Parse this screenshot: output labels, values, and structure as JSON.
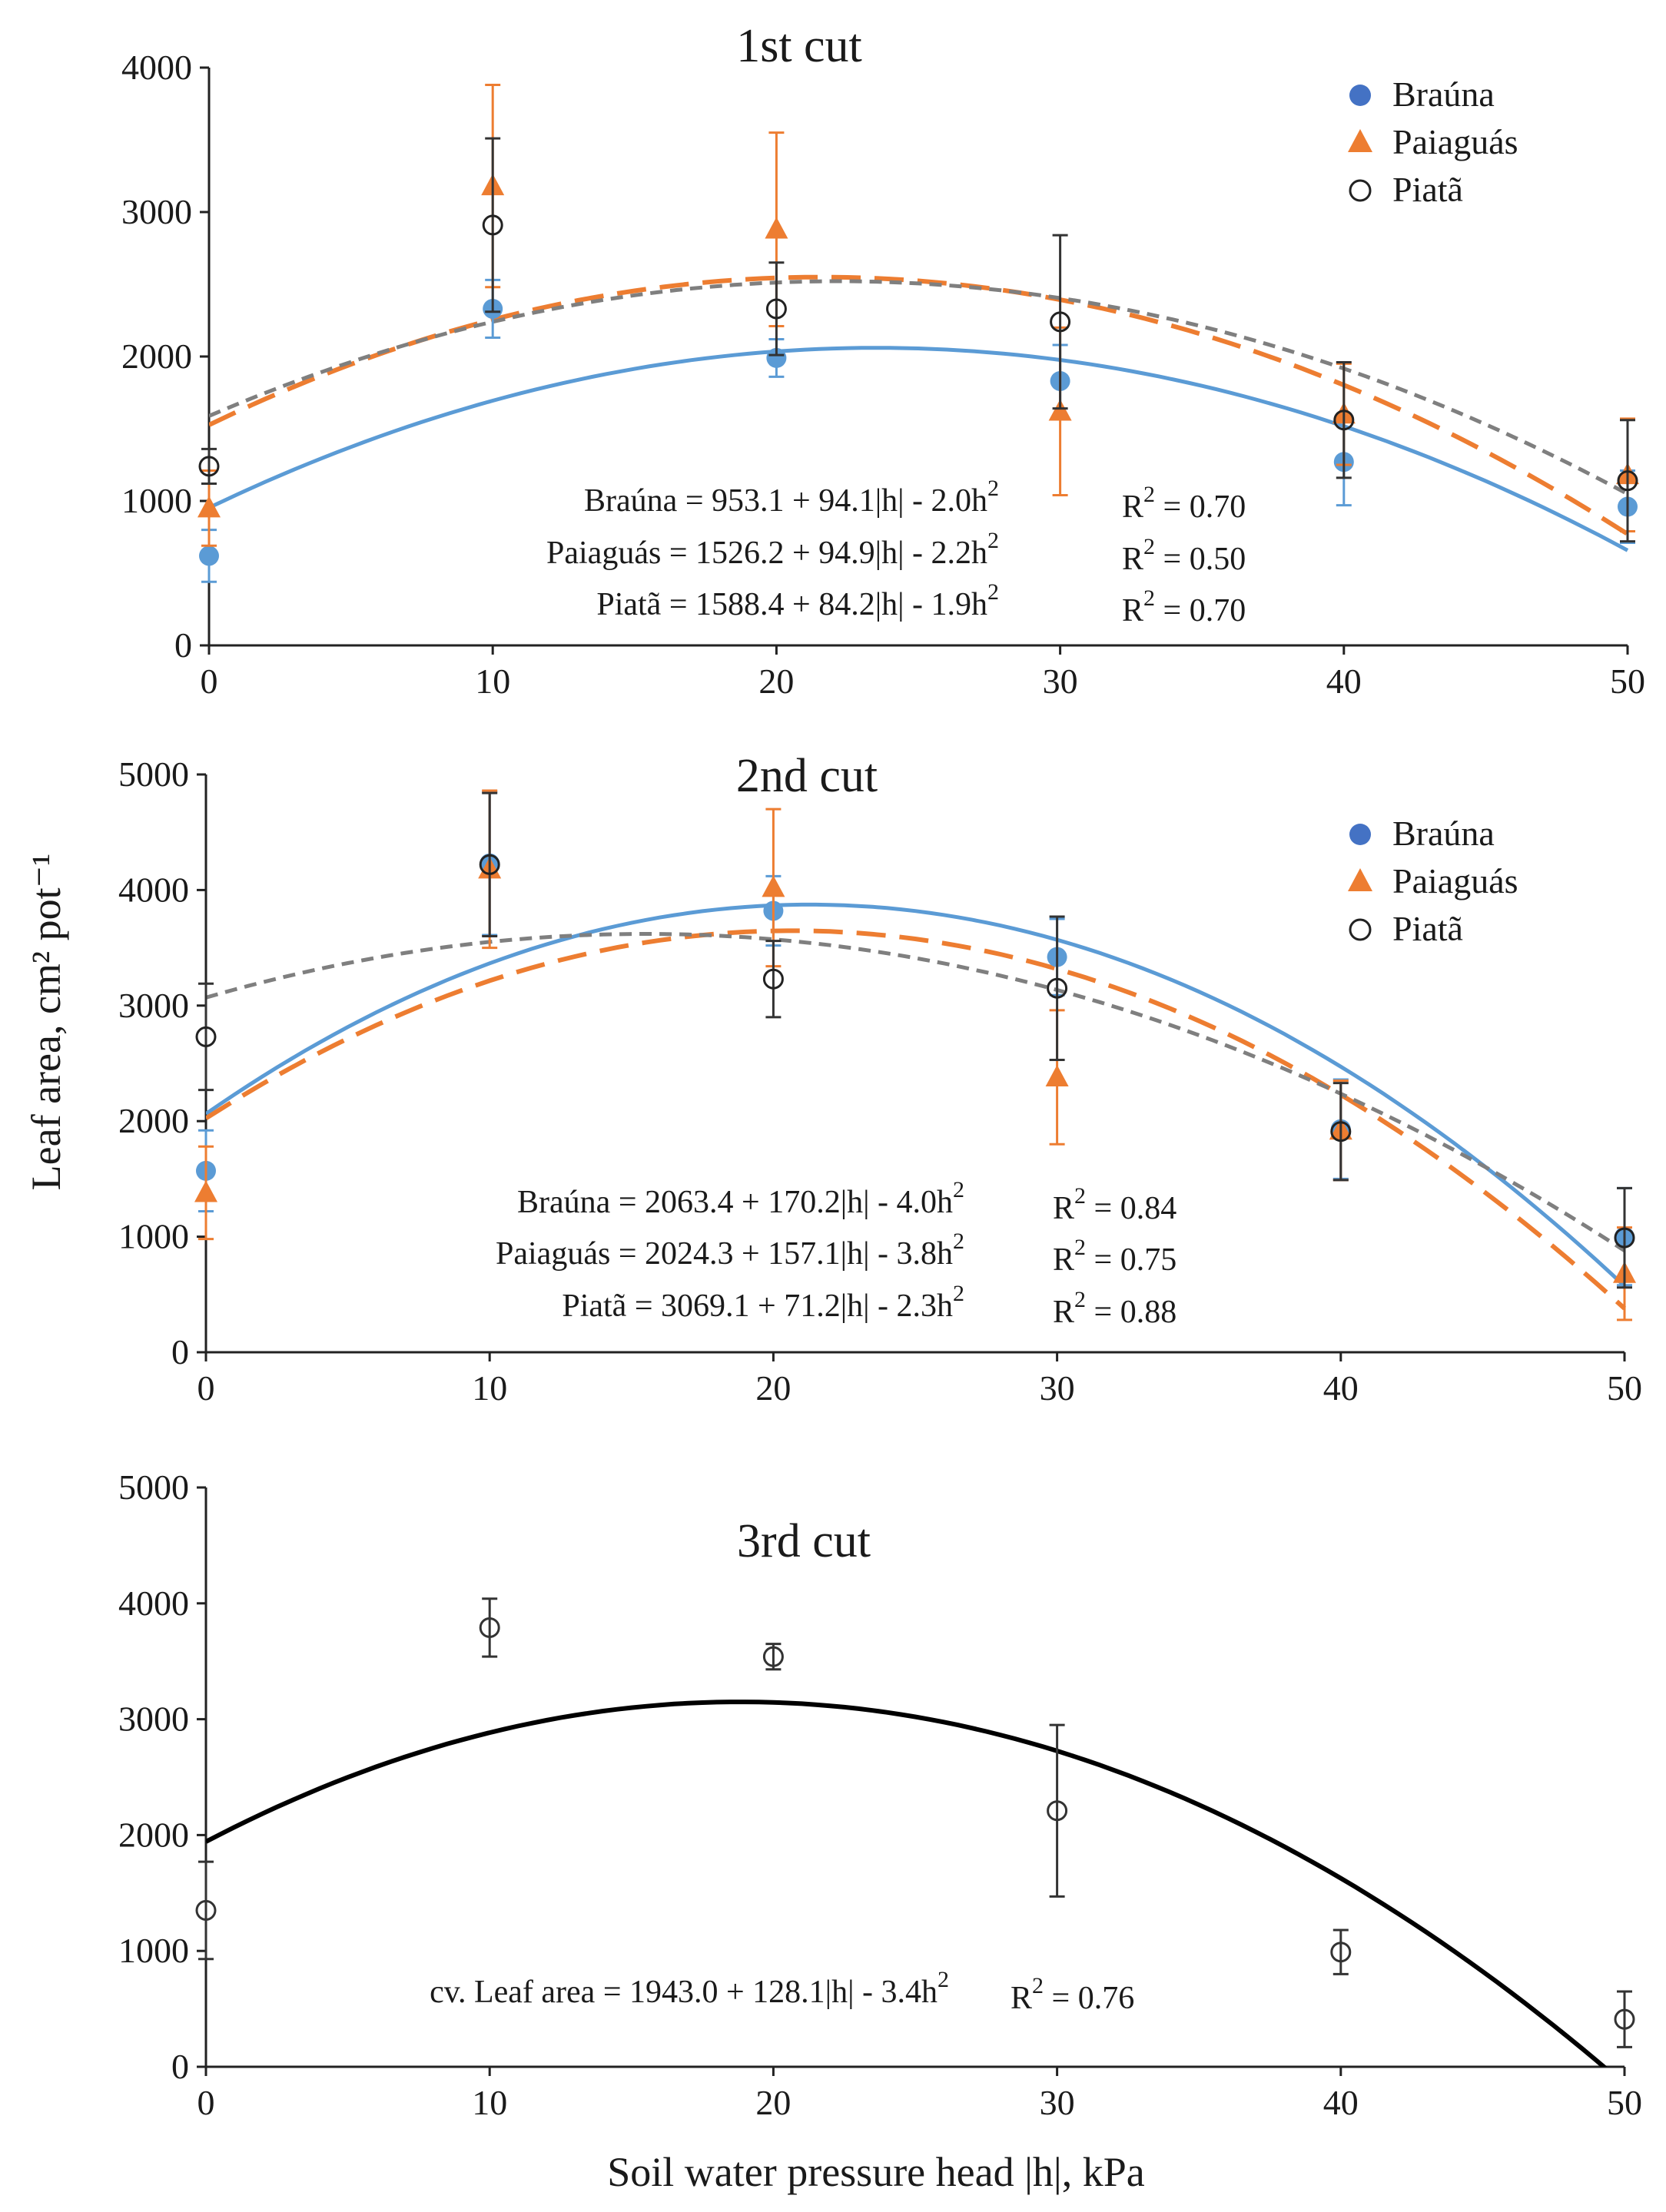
{
  "figure": {
    "ylabel": "Leaf area, cm² pot⁻¹",
    "xlabel": "Soil water pressure head |h|, kPa"
  },
  "colors": {
    "brauna": "#5b9bd5",
    "brauna_marker": "#4472c4",
    "paiaguas": "#ed7d31",
    "piata": "#7f7f7f",
    "black": "#000000"
  },
  "chart_data": [
    {
      "type": "scatter",
      "title": "1st cut",
      "x": [
        0,
        10,
        20,
        30,
        40,
        50
      ],
      "xticks": [
        0,
        10,
        20,
        30,
        40,
        50
      ],
      "xlim": [
        0,
        50
      ],
      "ylim": [
        0,
        4000
      ],
      "yticks": [
        0,
        1000,
        2000,
        3000,
        4000
      ],
      "legend": [
        "Braúna",
        "Paiaguás",
        "Piatã"
      ],
      "legend_position": "top-right",
      "series": [
        {
          "name": "Braúna",
          "values": [
            620,
            2330,
            1990,
            1830,
            1270,
            960
          ],
          "errors": [
            180,
            200,
            130,
            250,
            300,
            250
          ],
          "fit": {
            "a": 953.1,
            "b": 94.1,
            "c": -2.0
          },
          "equation": "Braúna = 953.1 + 94.1|h| - 2.0h",
          "r2": "R",
          "r2_value": " = 0.70"
        },
        {
          "name": "Paiaguás",
          "values": [
            950,
            3180,
            2880,
            1620,
            1600,
            1180
          ],
          "errors": [
            260,
            700,
            670,
            580,
            350,
            390
          ],
          "fit": {
            "a": 1526.2,
            "b": 94.9,
            "c": -2.2
          },
          "equation": "Paiaguás = 1526.2 + 94.9|h| - 2.2h",
          "r2": "R",
          "r2_value": " = 0.50"
        },
        {
          "name": "Piatã",
          "values": [
            1240,
            2910,
            2330,
            2240,
            1560,
            1140
          ],
          "errors": [
            120,
            600,
            320,
            600,
            400,
            420
          ],
          "fit": {
            "a": 1588.4,
            "b": 84.2,
            "c": -1.9
          },
          "equation": "Piatã = 1588.4 + 84.2|h| - 1.9h",
          "r2": "R",
          "r2_value": " = 0.70"
        }
      ]
    },
    {
      "type": "scatter",
      "title": "2nd cut",
      "x": [
        0,
        10,
        20,
        30,
        40,
        50
      ],
      "xticks": [
        0,
        10,
        20,
        30,
        40,
        50
      ],
      "xlim": [
        0,
        50
      ],
      "ylim": [
        0,
        5000
      ],
      "yticks": [
        0,
        1000,
        2000,
        3000,
        4000,
        5000
      ],
      "legend": [
        "Braúna",
        "Paiaguás",
        "Piatã"
      ],
      "legend_position": "top-right",
      "series": [
        {
          "name": "Braúna",
          "values": [
            1570,
            4230,
            3820,
            3420,
            1930,
            1000
          ],
          "errors": [
            350,
            620,
            300,
            330,
            430,
            420
          ],
          "fit": {
            "a": 2063.4,
            "b": 170.2,
            "c": -4.0
          },
          "equation": "Braúna = 2063.4 + 170.2|h| - 4.0h",
          "r2": "R",
          "r2_value": " = 0.84"
        },
        {
          "name": "Paiaguás",
          "values": [
            1380,
            4180,
            4020,
            2380,
            1920,
            680
          ],
          "errors": [
            400,
            680,
            680,
            580,
            430,
            400
          ],
          "fit": {
            "a": 2024.3,
            "b": 157.1,
            "c": -3.8
          },
          "equation": "Paiaguás = 2024.3 + 157.1|h| - 3.8h",
          "r2": "R",
          "r2_value": " = 0.75"
        },
        {
          "name": "Piatã",
          "values": [
            2730,
            4220,
            3230,
            3150,
            1910,
            990
          ],
          "errors": [
            460,
            620,
            330,
            620,
            420,
            430
          ],
          "fit": {
            "a": 3069.1,
            "b": 71.2,
            "c": -2.3
          },
          "equation": "Piatã = 3069.1 + 71.2|h| - 2.3h",
          "r2": "R",
          "r2_value": " = 0.88"
        }
      ]
    },
    {
      "type": "scatter",
      "title": "3rd cut",
      "x": [
        0,
        10,
        20,
        30,
        40,
        50
      ],
      "xticks": [
        0,
        10,
        20,
        30,
        40,
        50
      ],
      "xlim": [
        0,
        50
      ],
      "ylim": [
        0,
        5000
      ],
      "yticks": [
        0,
        1000,
        2000,
        3000,
        4000,
        5000
      ],
      "series": [
        {
          "name": "cv.",
          "values": [
            1350,
            3790,
            3540,
            2210,
            990,
            410
          ],
          "errors": [
            420,
            250,
            110,
            740,
            190,
            240
          ],
          "fit": {
            "a": 1943.0,
            "b": 128.1,
            "c": -3.4
          },
          "equation": "cv. Leaf area = 1943.0 + 128.1|h| - 3.4h",
          "r2": "R",
          "r2_value": " = 0.76"
        }
      ]
    }
  ]
}
